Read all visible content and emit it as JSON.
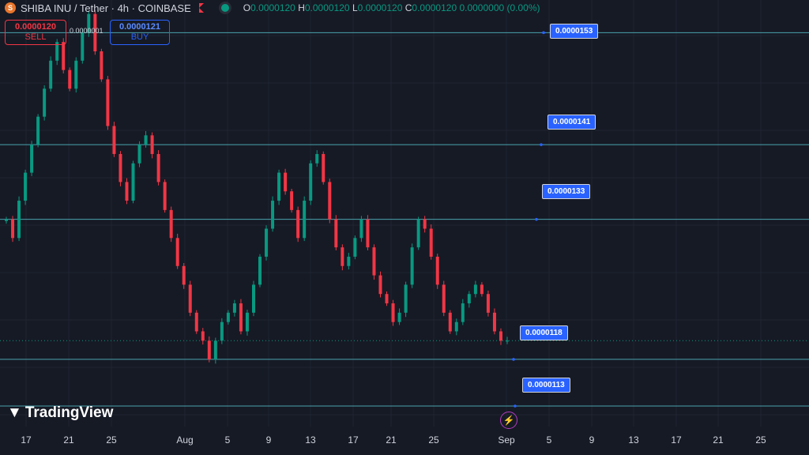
{
  "header": {
    "symbol_logo": "shib-icon",
    "title": "SHIBA INU / Tether · 4h · COINBASE",
    "ohlc": [
      {
        "k": "O",
        "v": "0.0000120"
      },
      {
        "k": "H",
        "v": "0.0000120"
      },
      {
        "k": "L",
        "v": "0.0000120"
      },
      {
        "k": "C",
        "v": "0.0000120 0.0000000 (0.00%)"
      }
    ]
  },
  "trade": {
    "sell_price": "0.0000120",
    "sell_label": "SELL",
    "spread": "0.0000001",
    "buy_price": "0.0000121",
    "buy_label": "BUY"
  },
  "branding": {
    "logo_text": "TradingView"
  },
  "colors": {
    "background": "#161a25",
    "up": "#089981",
    "down": "#f23645",
    "level_line": "#4aa3ad",
    "tag": "#2962ff"
  },
  "chart_data": {
    "type": "candlestick",
    "ylim": [
      1.108e-05,
      1.565e-05
    ],
    "grid": true,
    "x_tick_labels": [
      "17",
      "21",
      "25",
      "Aug",
      "5",
      "9",
      "13",
      "17",
      "21",
      "25",
      "Sep",
      "5",
      "9",
      "13",
      "17",
      "21",
      "25"
    ],
    "levels": [
      {
        "value": 1.53e-05,
        "label": "0.0000153"
      },
      {
        "value": 1.41e-05,
        "label": "0.0000141"
      },
      {
        "value": 1.33e-05,
        "label": "0.0000133"
      },
      {
        "value": 1.18e-05,
        "label": "0.0000118"
      },
      {
        "value": 1.13e-05,
        "label": "0.0000113"
      }
    ],
    "last_price": 1.2e-05,
    "candles_close": [
      1.33e-05,
      1.31e-05,
      1.35e-05,
      1.38e-05,
      1.41e-05,
      1.44e-05,
      1.47e-05,
      1.5e-05,
      1.52e-05,
      1.49e-05,
      1.47e-05,
      1.5e-05,
      1.53e-05,
      1.55e-05,
      1.51e-05,
      1.48e-05,
      1.43e-05,
      1.4e-05,
      1.37e-05,
      1.35e-05,
      1.39e-05,
      1.41e-05,
      1.42e-05,
      1.4e-05,
      1.37e-05,
      1.34e-05,
      1.31e-05,
      1.28e-05,
      1.26e-05,
      1.23e-05,
      1.21e-05,
      1.2e-05,
      1.18e-05,
      1.2e-05,
      1.22e-05,
      1.23e-05,
      1.24e-05,
      1.21e-05,
      1.23e-05,
      1.26e-05,
      1.29e-05,
      1.32e-05,
      1.35e-05,
      1.38e-05,
      1.36e-05,
      1.34e-05,
      1.31e-05,
      1.35e-05,
      1.39e-05,
      1.4e-05,
      1.37e-05,
      1.33e-05,
      1.3e-05,
      1.28e-05,
      1.29e-05,
      1.31e-05,
      1.33e-05,
      1.3e-05,
      1.27e-05,
      1.25e-05,
      1.24e-05,
      1.22e-05,
      1.23e-05,
      1.26e-05,
      1.3e-05,
      1.33e-05,
      1.32e-05,
      1.29e-05,
      1.26e-05,
      1.23e-05,
      1.21e-05,
      1.22e-05,
      1.24e-05,
      1.25e-05,
      1.26e-05,
      1.25e-05,
      1.23e-05,
      1.21e-05,
      1.2e-05,
      1.2e-05
    ]
  }
}
